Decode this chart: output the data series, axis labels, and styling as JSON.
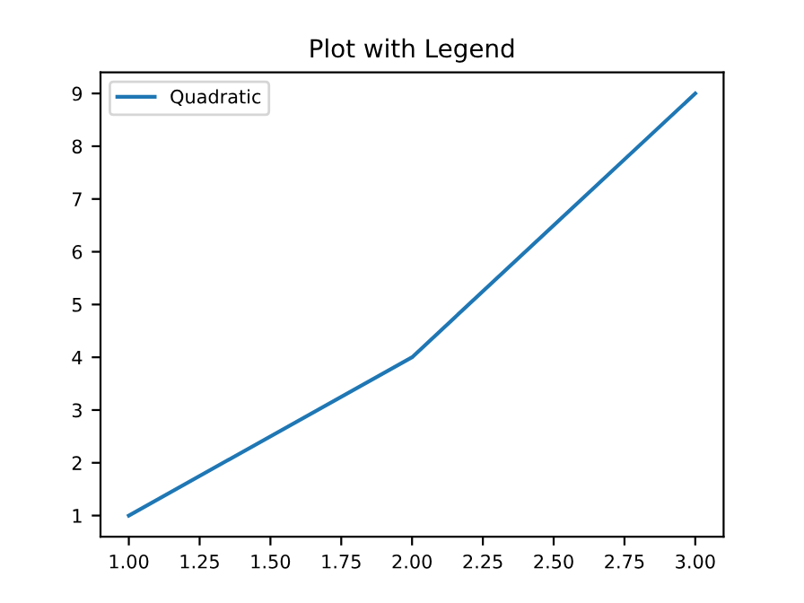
{
  "chart_data": {
    "type": "line",
    "title": "Plot with Legend",
    "x": [
      1,
      2,
      3
    ],
    "series": [
      {
        "name": "Quadratic",
        "color": "#1f77b4",
        "values": [
          1,
          4,
          9
        ]
      }
    ],
    "xlim": [
      0.9,
      3.1
    ],
    "ylim": [
      0.6,
      9.4
    ],
    "xticks": [
      {
        "value": 1,
        "label": "1.00"
      },
      {
        "value": 1.25,
        "label": "1.25"
      },
      {
        "value": 1.5,
        "label": "1.50"
      },
      {
        "value": 1.75,
        "label": "1.75"
      },
      {
        "value": 2,
        "label": "2.00"
      },
      {
        "value": 2.25,
        "label": "2.25"
      },
      {
        "value": 2.5,
        "label": "2.50"
      },
      {
        "value": 2.75,
        "label": "2.75"
      },
      {
        "value": 3,
        "label": "3.00"
      }
    ],
    "yticks": [
      1,
      2,
      3,
      4,
      5,
      6,
      7,
      8,
      9
    ],
    "legend": "top left",
    "grid": false,
    "line_style": "solid",
    "marker": "none"
  }
}
